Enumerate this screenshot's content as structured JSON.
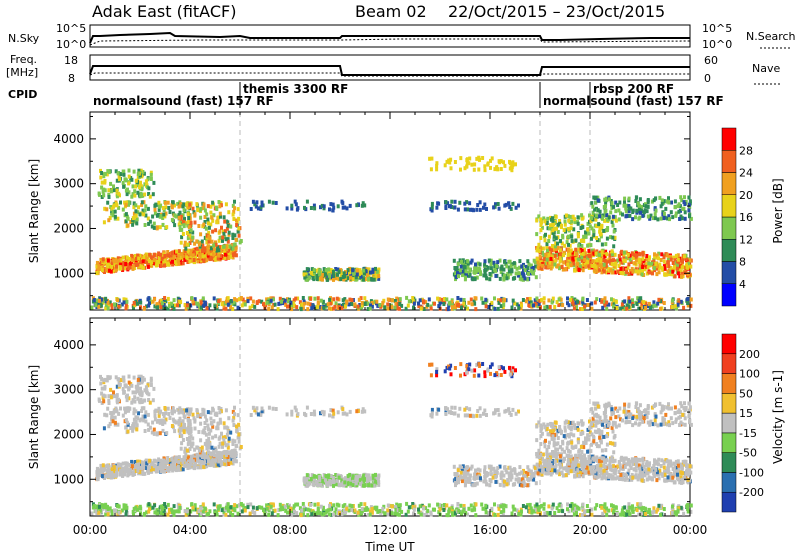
{
  "header": {
    "radar_title": "Adak East (fitACF)",
    "beam_label": "Beam 02",
    "date_range": "22/Oct/2015 – 23/Oct/2015"
  },
  "summary_panel": {
    "nsky_label": "N.Sky",
    "nsky_ticks": [
      "10^5",
      "10^0"
    ],
    "nsearch_label": "N.Search",
    "nsearch_ticks": [
      "10^5",
      "10^0"
    ],
    "freq_label_line1": "Freq.",
    "freq_label_line2": "[MHz]",
    "freq_ticks": [
      "18",
      "8"
    ],
    "nave_label": "Nave",
    "nave_ticks": [
      "60",
      "0"
    ],
    "cpid_label": "CPID",
    "cpid_segments": [
      {
        "label": "normalsound (fast) 157 RF",
        "start_h": 0,
        "end_h": 6
      },
      {
        "label": "themis 3300 RF",
        "start_h": 6,
        "end_h": 18
      },
      {
        "label": "normalsound (fast) 157 RF",
        "start_h": 18,
        "end_h": 20
      },
      {
        "label": "rbsp 200 RF",
        "start_h": 20,
        "end_h": 24
      }
    ]
  },
  "chart_data": [
    {
      "type": "heatmap",
      "title": "Power",
      "ylabel": "Slant Range [km]",
      "xlabel": "Time UT",
      "x_ticks": [
        "00:00",
        "04:00",
        "08:00",
        "12:00",
        "16:00",
        "20:00",
        "00:00"
      ],
      "y_ticks": [
        1000,
        2000,
        3000,
        4000
      ],
      "ylim": [
        180,
        4600
      ],
      "xlim_hours": [
        0,
        24
      ],
      "colorbar_label": "Power [dB]",
      "colorbar_ticks": [
        4,
        8,
        12,
        16,
        20,
        24,
        28
      ],
      "colorbar_range": [
        0,
        32
      ],
      "colorbar_colors": [
        "#0000ff",
        "#234da6",
        "#2e8b57",
        "#7ec850",
        "#e8d21a",
        "#f0a020",
        "#f06020",
        "#ff0000"
      ]
    },
    {
      "type": "heatmap",
      "title": "Velocity",
      "ylabel": "Slant Range [km]",
      "xlabel": "Time UT",
      "x_ticks": [
        "00:00",
        "04:00",
        "08:00",
        "12:00",
        "16:00",
        "20:00",
        "00:00"
      ],
      "y_ticks": [
        1000,
        2000,
        3000,
        4000
      ],
      "ylim": [
        180,
        4600
      ],
      "xlim_hours": [
        0,
        24
      ],
      "colorbar_label": "Velocity [m s-1]",
      "colorbar_ticks": [
        "200",
        "100",
        "50",
        "15",
        "-15",
        "-50",
        "-100",
        "-200"
      ],
      "colorbar_colors": [
        "#1f3fb0",
        "#2a6fb0",
        "#2e8b57",
        "#78d050",
        "#c0c0c0",
        "#f0c030",
        "#f08020",
        "#f04020",
        "#ff0000"
      ]
    }
  ]
}
